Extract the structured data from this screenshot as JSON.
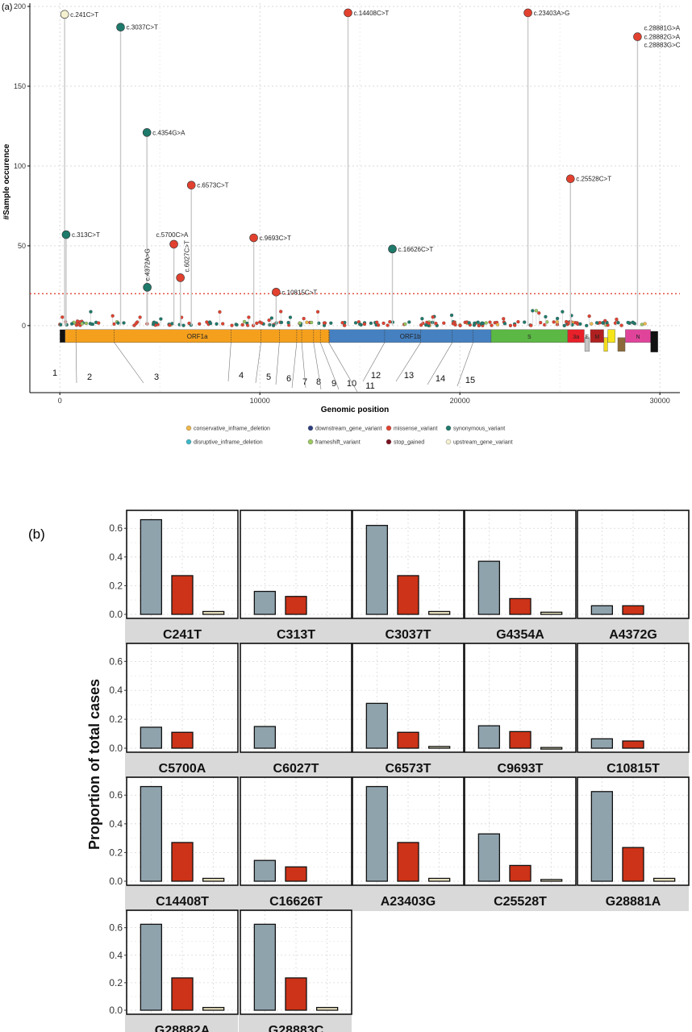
{
  "panel_a_label": "(a)",
  "panel_b_label": "(b)",
  "colors": {
    "missense": "#e2412f",
    "synonymous": "#1e7a6b",
    "upstream": "#f5f1d0",
    "threshold": "#e03020",
    "bar_total": "#8fa3ad",
    "bar_missense": "#cc3318",
    "bar_small": "#efe8c4"
  },
  "chart_data": [
    {
      "type": "scatter",
      "xlabel": "Genomic position",
      "ylabel": "#Sample occurence",
      "xlim": [
        -1500,
        31000
      ],
      "ylim": [
        -42,
        202
      ],
      "x_ticks": [
        0,
        10000,
        20000,
        30000
      ],
      "y_ticks": [
        0,
        50,
        100,
        150,
        200
      ],
      "threshold": 20,
      "grid": true,
      "points": [
        {
          "x": 241,
          "y": 195,
          "label": "c.241C>T",
          "type": "upstream"
        },
        {
          "x": 3037,
          "y": 187,
          "label": "c.3037C>T",
          "type": "synonymous"
        },
        {
          "x": 313,
          "y": 57,
          "label": "c.313C>T",
          "type": "synonymous"
        },
        {
          "x": 4354,
          "y": 121,
          "label": "c.4354G>A",
          "type": "synonymous"
        },
        {
          "x": 4372,
          "y": 24,
          "label": "c.4372A>G",
          "type": "synonymous"
        },
        {
          "x": 5700,
          "y": 51,
          "label": "c.5700C>A",
          "type": "missense"
        },
        {
          "x": 6027,
          "y": 30,
          "label": "c.6027C>T",
          "type": "missense"
        },
        {
          "x": 6573,
          "y": 88,
          "label": "c.6573C>T",
          "type": "missense"
        },
        {
          "x": 9693,
          "y": 55,
          "label": "c.9693C>T",
          "type": "missense"
        },
        {
          "x": 10815,
          "y": 21,
          "label": "c.10815C>T",
          "type": "missense"
        },
        {
          "x": 14408,
          "y": 196,
          "label": "c.14408C>T",
          "type": "missense"
        },
        {
          "x": 16626,
          "y": 48,
          "label": "c.16626C>T",
          "type": "synonymous"
        },
        {
          "x": 23403,
          "y": 196,
          "label": "c.23403A>G",
          "type": "missense"
        },
        {
          "x": 25528,
          "y": 92,
          "label": "c.25528C>T",
          "type": "missense"
        },
        {
          "x": 28881,
          "y": 181,
          "label": "c.28881G>A",
          "type": "missense"
        }
      ],
      "extra_labels": [
        "c.28882G>A",
        "c.28883G>C"
      ],
      "genes": [
        {
          "name": "ORF1a",
          "start": 266,
          "end": 13480,
          "color": "#f5a01d"
        },
        {
          "name": "ORF1b",
          "start": 13480,
          "end": 21555,
          "color": "#4580c0"
        },
        {
          "name": "S",
          "start": 21563,
          "end": 25384,
          "color": "#5cb845"
        },
        {
          "name": "3a",
          "start": 25393,
          "end": 26220,
          "color": "#e8202a"
        },
        {
          "name": "E",
          "start": 26245,
          "end": 26472,
          "color": "#c7c7c7"
        },
        {
          "name": "M",
          "start": 26523,
          "end": 27191,
          "color": "#b02020"
        },
        {
          "name": "",
          "start": 27202,
          "end": 27387,
          "color": "#f2dc1c"
        },
        {
          "name": "",
          "start": 27394,
          "end": 27759,
          "color": "#f5e51a"
        },
        {
          "name": "",
          "start": 27894,
          "end": 28259,
          "color": "#8c6a3a"
        },
        {
          "name": "N",
          "start": 28274,
          "end": 29533,
          "color": "#e0449a"
        }
      ],
      "domain_numbers": [
        "1",
        "2",
        "3",
        "4",
        "5",
        "6",
        "7",
        "8",
        "9",
        "10",
        "11",
        "12",
        "13",
        "14",
        "15"
      ],
      "legend": [
        {
          "label": "conservative_inframe_deletion",
          "color": "#f0b84a"
        },
        {
          "label": "downstream_gene_variant",
          "color": "#2e3f80"
        },
        {
          "label": "missense_variant",
          "color": "#e2412f"
        },
        {
          "label": "synonymous_variant",
          "color": "#1e7a6b"
        },
        {
          "label": "disruptive_inframe_deletion",
          "color": "#3ab8c8"
        },
        {
          "label": "frameshift_variant",
          "color": "#9bc860"
        },
        {
          "label": "stop_gained",
          "color": "#7a1020"
        },
        {
          "label": "upstream_gene_variant",
          "color": "#f5f1d0"
        }
      ]
    },
    {
      "type": "bar",
      "ylabel": "Proportion of total cases",
      "ylim": [
        0,
        0.68
      ],
      "y_ticks": [
        "0.0",
        "0.2",
        "0.4",
        "0.6"
      ],
      "grid": true,
      "panels": [
        {
          "name": "C241T",
          "values": [
            0.66,
            0.27,
            0.02
          ]
        },
        {
          "name": "C313T",
          "values": [
            0.16,
            0.125,
            0.0
          ]
        },
        {
          "name": "C3037T",
          "values": [
            0.62,
            0.27,
            0.02
          ]
        },
        {
          "name": "G4354A",
          "values": [
            0.37,
            0.11,
            0.015
          ]
        },
        {
          "name": "A4372G",
          "values": [
            0.06,
            0.06,
            0.0
          ]
        },
        {
          "name": "C5700A",
          "values": [
            0.145,
            0.11,
            0.0
          ]
        },
        {
          "name": "C6027T",
          "values": [
            0.15,
            0.0,
            0.0
          ]
        },
        {
          "name": "C6573T",
          "values": [
            0.31,
            0.11,
            0.012
          ]
        },
        {
          "name": "C9693T",
          "values": [
            0.155,
            0.115,
            0.005
          ]
        },
        {
          "name": "C10815T",
          "values": [
            0.065,
            0.05,
            0.0
          ]
        },
        {
          "name": "C14408T",
          "values": [
            0.66,
            0.27,
            0.02
          ]
        },
        {
          "name": "C16626T",
          "values": [
            0.145,
            0.1,
            0.0
          ]
        },
        {
          "name": "A23403G",
          "values": [
            0.66,
            0.27,
            0.02
          ]
        },
        {
          "name": "C25528T",
          "values": [
            0.33,
            0.11,
            0.012
          ]
        },
        {
          "name": "G28881A",
          "values": [
            0.625,
            0.235,
            0.02
          ]
        },
        {
          "name": "G28882A",
          "values": [
            0.625,
            0.235,
            0.02
          ]
        },
        {
          "name": "G28883C",
          "values": [
            0.625,
            0.235,
            0.02
          ]
        }
      ]
    }
  ]
}
